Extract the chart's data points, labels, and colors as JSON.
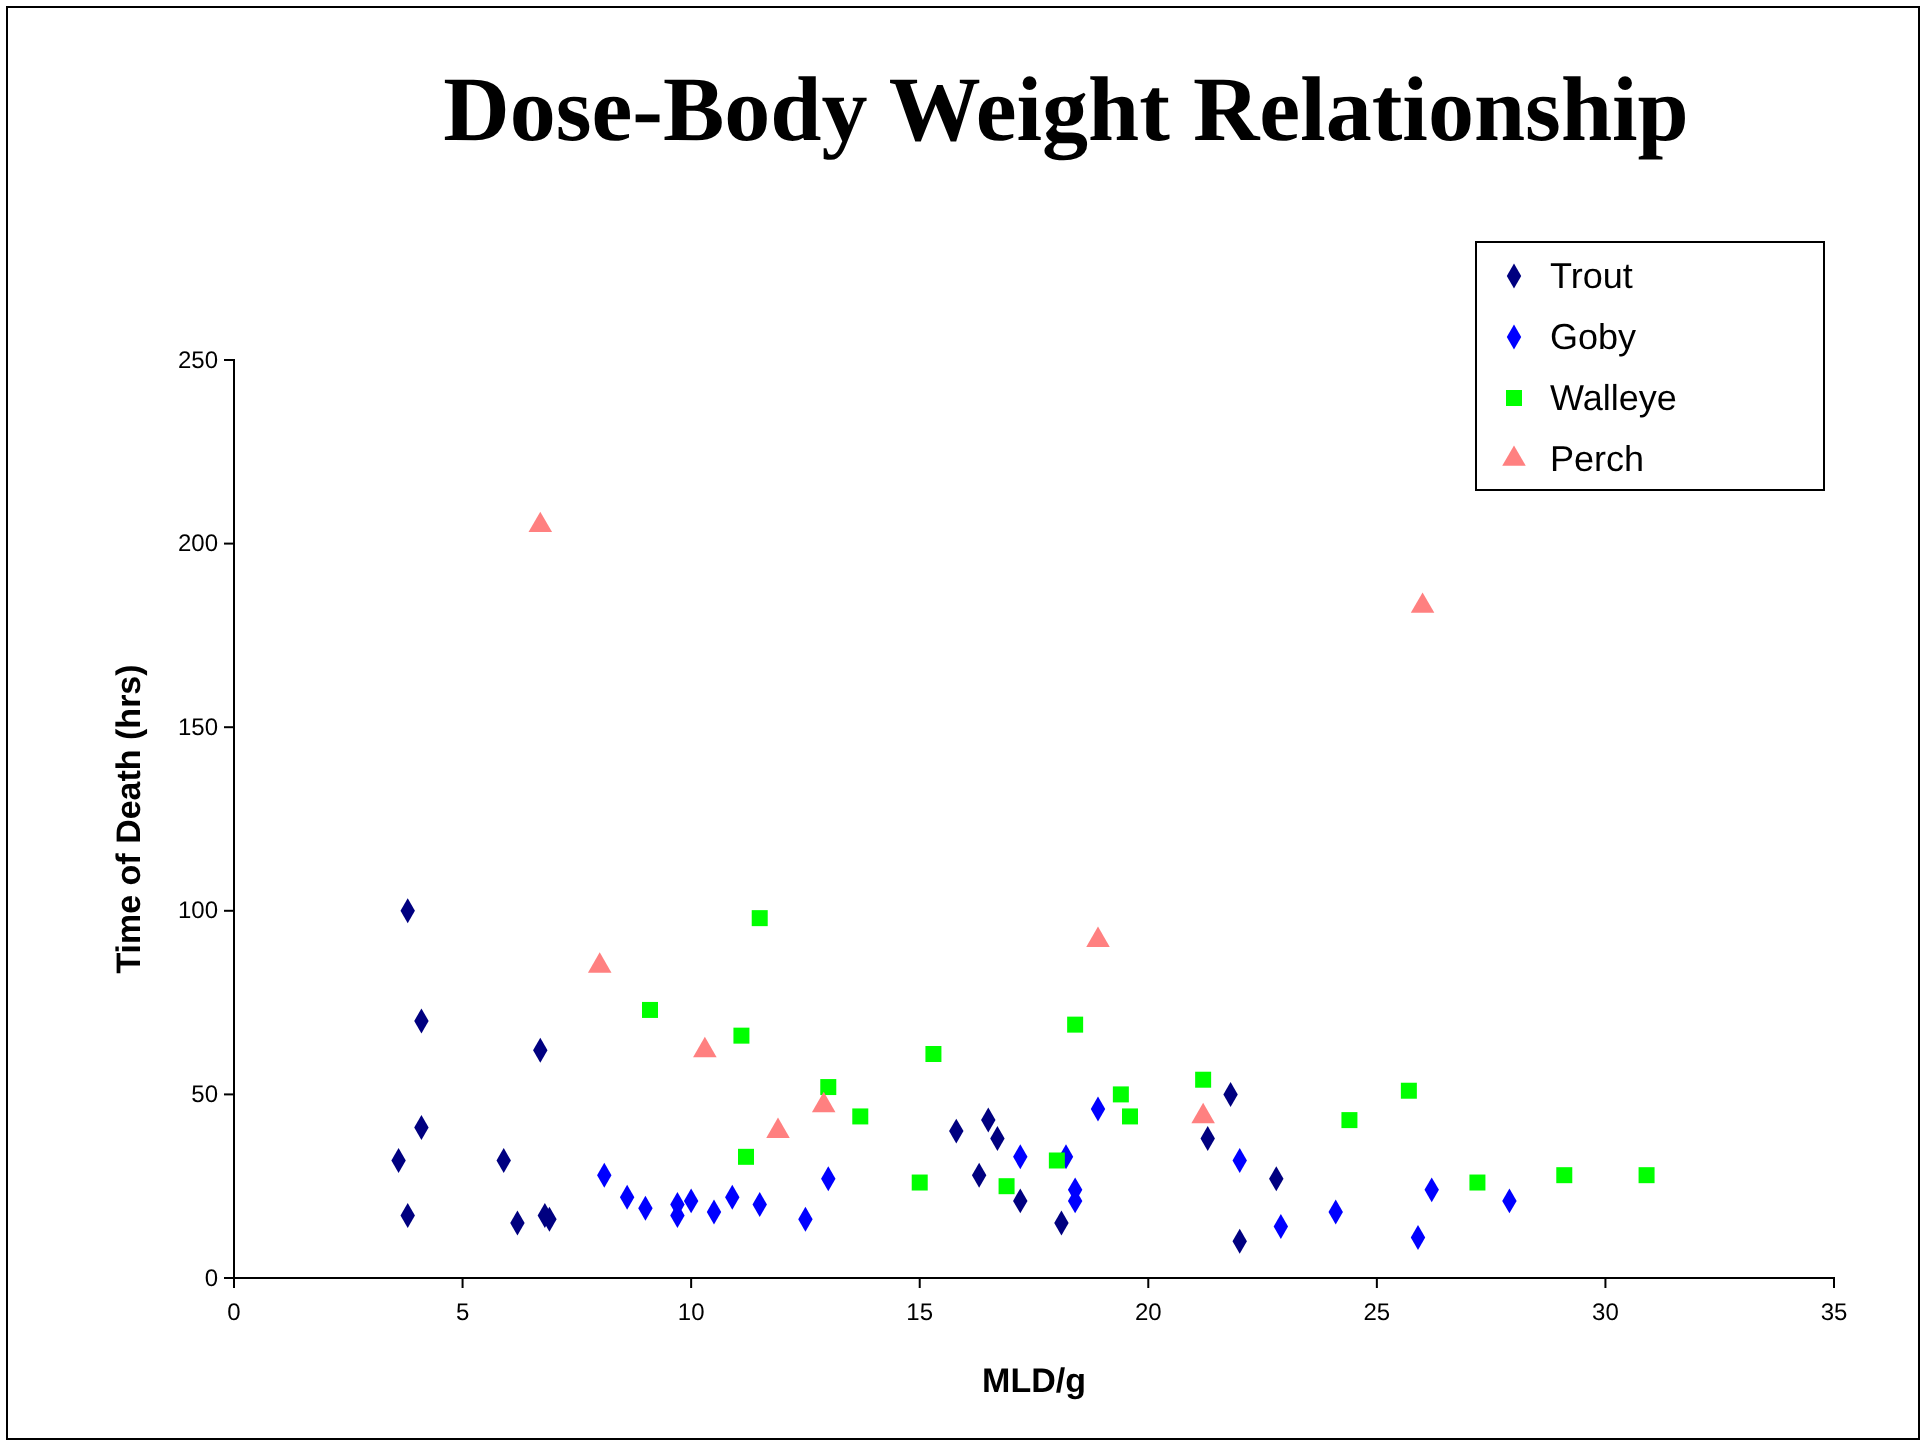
{
  "chart_data": {
    "type": "scatter",
    "title": "Dose-Body Weight Relationship",
    "xlabel": "MLD/g",
    "ylabel": "Time of Death (hrs)",
    "xlim": [
      0,
      35
    ],
    "xticks": [
      0,
      5,
      10,
      15,
      20,
      25,
      30,
      35
    ],
    "ylim": [
      0,
      250
    ],
    "yticks": [
      0,
      50,
      100,
      150,
      200,
      250
    ],
    "grid": false,
    "legend": "top right",
    "series": [
      {
        "name": "Trout",
        "color": "#000080",
        "marker": "diamond",
        "x": [
          3.6,
          3.8,
          3.8,
          4.1,
          4.1,
          5.9,
          6.2,
          6.7,
          6.8,
          6.9,
          15.8,
          16.3,
          16.5,
          16.7,
          17.2,
          18.1,
          21.3,
          21.8,
          22.0,
          22.8
        ],
        "values": [
          32,
          17,
          100,
          41,
          70,
          32,
          15,
          62,
          17,
          16,
          40,
          28,
          43,
          38,
          21,
          15,
          38,
          50,
          10,
          27
        ]
      },
      {
        "name": "Goby",
        "color": "#0000ff",
        "marker": "diamond",
        "x": [
          8.1,
          8.6,
          9.0,
          9.7,
          9.7,
          10.0,
          10.5,
          10.9,
          11.5,
          12.5,
          13.0,
          17.2,
          18.2,
          18.9,
          18.4,
          18.4,
          22.0,
          22.9,
          24.1,
          25.9,
          26.2,
          27.9
        ],
        "values": [
          28,
          22,
          19,
          20,
          17,
          21,
          18,
          22,
          20,
          16,
          27,
          33,
          33,
          46,
          24,
          21,
          32,
          14,
          18,
          11,
          24,
          21
        ]
      },
      {
        "name": "Walleye",
        "color": "#00ff00",
        "marker": "square",
        "x": [
          11.5,
          9.1,
          11.1,
          15.3,
          13.0,
          13.7,
          11.2,
          15.0,
          18.4,
          19.4,
          19.6,
          18.0,
          16.9,
          21.2,
          24.4,
          25.7,
          27.2,
          29.1,
          30.9
        ],
        "values": [
          98,
          73,
          66,
          61,
          52,
          44,
          33,
          26,
          69,
          50,
          44,
          32,
          25,
          54,
          43,
          51,
          26,
          28,
          28
        ]
      },
      {
        "name": "Perch",
        "color": "#ff8080",
        "marker": "triangle",
        "x": [
          6.7,
          8.0,
          10.3,
          11.9,
          12.9,
          18.9,
          21.2,
          26.0
        ],
        "values": [
          205,
          85,
          62,
          40,
          47,
          92,
          44,
          183
        ]
      }
    ]
  }
}
